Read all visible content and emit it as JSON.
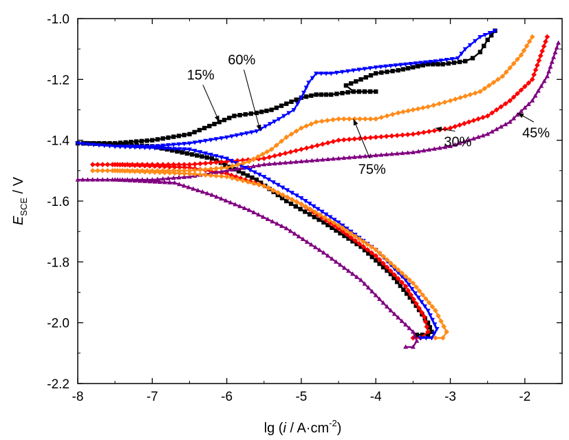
{
  "chart_data": {
    "type": "line",
    "xlim": [
      -8,
      -1.5
    ],
    "ylim": [
      -2.2,
      -1.0
    ],
    "x_ticks": [
      "-8",
      "-7",
      "-6",
      "-5",
      "-4",
      "-3",
      "-2"
    ],
    "y_ticks": [
      "-1.0",
      "-1.2",
      "-1.4",
      "-1.6",
      "-1.8",
      "-2.0",
      "-2.2"
    ],
    "xlabel": {
      "main": "lg (",
      "var": "i",
      "unit": " / A·cm",
      "sup": "-2",
      "close": ")"
    },
    "ylabel": {
      "var": "E",
      "sub": "SCE",
      "unit": " / V"
    },
    "grid": false,
    "legend": "none",
    "series": [
      {
        "name": "15%",
        "color": "#000000",
        "anodic": [
          [
            -8,
            -1.41
          ],
          [
            -7.5,
            -1.41
          ],
          [
            -7,
            -1.4
          ],
          [
            -6.5,
            -1.38
          ],
          [
            -6.3,
            -1.36
          ],
          [
            -6.1,
            -1.34
          ],
          [
            -5.9,
            -1.32
          ],
          [
            -5.6,
            -1.31
          ],
          [
            -5.4,
            -1.3
          ],
          [
            -5.2,
            -1.28
          ],
          [
            -5.0,
            -1.26
          ],
          [
            -4.8,
            -1.25
          ],
          [
            -4.6,
            -1.25
          ],
          [
            -4.3,
            -1.24
          ],
          [
            -4.0,
            -1.24
          ],
          [
            -4.3,
            -1.24
          ],
          [
            -4.4,
            -1.22
          ],
          [
            -4.2,
            -1.2
          ],
          [
            -4.0,
            -1.18
          ],
          [
            -3.7,
            -1.17
          ],
          [
            -3.5,
            -1.16
          ],
          [
            -3.3,
            -1.15
          ],
          [
            -3.1,
            -1.15
          ],
          [
            -2.8,
            -1.14
          ],
          [
            -2.7,
            -1.13
          ],
          [
            -2.6,
            -1.11
          ],
          [
            -2.5,
            -1.07
          ],
          [
            -2.4,
            -1.04
          ]
        ],
        "cathodic": [
          [
            -7.9,
            -1.41
          ],
          [
            -7.0,
            -1.42
          ],
          [
            -6.2,
            -1.46
          ],
          [
            -5.6,
            -1.53
          ],
          [
            -5.2,
            -1.6
          ],
          [
            -4.7,
            -1.67
          ],
          [
            -4.2,
            -1.75
          ],
          [
            -3.8,
            -1.84
          ],
          [
            -3.5,
            -1.93
          ],
          [
            -3.3,
            -2.0
          ],
          [
            -3.25,
            -2.03
          ],
          [
            -3.3,
            -2.04
          ],
          [
            -3.45,
            -2.04
          ]
        ]
      },
      {
        "name": "30%",
        "color": "#ff0000",
        "anodic": [
          [
            -7.8,
            -1.48
          ],
          [
            -7.0,
            -1.48
          ],
          [
            -6.5,
            -1.48
          ],
          [
            -6.0,
            -1.47
          ],
          [
            -5.5,
            -1.46
          ],
          [
            -5.0,
            -1.43
          ],
          [
            -4.5,
            -1.4
          ],
          [
            -4.0,
            -1.39
          ],
          [
            -3.5,
            -1.38
          ],
          [
            -3.0,
            -1.36
          ],
          [
            -2.5,
            -1.32
          ],
          [
            -2.2,
            -1.27
          ],
          [
            -1.9,
            -1.2
          ],
          [
            -1.7,
            -1.06
          ]
        ],
        "cathodic": [
          [
            -7.5,
            -1.48
          ],
          [
            -6.5,
            -1.49
          ],
          [
            -6.0,
            -1.51
          ],
          [
            -5.5,
            -1.55
          ],
          [
            -5.0,
            -1.61
          ],
          [
            -4.5,
            -1.69
          ],
          [
            -4.0,
            -1.78
          ],
          [
            -3.6,
            -1.88
          ],
          [
            -3.35,
            -1.98
          ],
          [
            -3.3,
            -2.03
          ],
          [
            -3.4,
            -2.05
          ],
          [
            -3.5,
            -2.05
          ]
        ]
      },
      {
        "name": "45%",
        "color": "#800080",
        "anodic": [
          [
            -8,
            -1.53
          ],
          [
            -7.0,
            -1.53
          ],
          [
            -6.5,
            -1.52
          ],
          [
            -6.0,
            -1.5
          ],
          [
            -5.5,
            -1.48
          ],
          [
            -5.0,
            -1.47
          ],
          [
            -4.5,
            -1.46
          ],
          [
            -4.0,
            -1.45
          ],
          [
            -3.5,
            -1.44
          ],
          [
            -3.0,
            -1.42
          ],
          [
            -2.5,
            -1.38
          ],
          [
            -2.2,
            -1.34
          ],
          [
            -1.9,
            -1.27
          ],
          [
            -1.7,
            -1.19
          ],
          [
            -1.55,
            -1.08
          ]
        ],
        "cathodic": [
          [
            -7.5,
            -1.53
          ],
          [
            -6.7,
            -1.54
          ],
          [
            -6.2,
            -1.58
          ],
          [
            -5.7,
            -1.63
          ],
          [
            -5.2,
            -1.69
          ],
          [
            -4.7,
            -1.77
          ],
          [
            -4.2,
            -1.86
          ],
          [
            -3.8,
            -1.96
          ],
          [
            -3.5,
            -2.03
          ],
          [
            -3.45,
            -2.06
          ],
          [
            -3.5,
            -2.08
          ],
          [
            -3.6,
            -2.08
          ]
        ]
      },
      {
        "name": "60%",
        "color": "#0000ff",
        "anodic": [
          [
            -8,
            -1.41
          ],
          [
            -7.5,
            -1.42
          ],
          [
            -7.0,
            -1.42
          ],
          [
            -6.5,
            -1.41
          ],
          [
            -6.0,
            -1.39
          ],
          [
            -5.6,
            -1.37
          ],
          [
            -5.3,
            -1.33
          ],
          [
            -5.1,
            -1.3
          ],
          [
            -5.0,
            -1.26
          ],
          [
            -4.9,
            -1.21
          ],
          [
            -4.8,
            -1.18
          ],
          [
            -4.6,
            -1.18
          ],
          [
            -4.3,
            -1.17
          ],
          [
            -4.0,
            -1.16
          ],
          [
            -3.6,
            -1.15
          ],
          [
            -3.2,
            -1.14
          ],
          [
            -2.9,
            -1.13
          ],
          [
            -2.8,
            -1.1
          ],
          [
            -2.6,
            -1.06
          ],
          [
            -2.4,
            -1.04
          ]
        ],
        "cathodic": [
          [
            -7.5,
            -1.42
          ],
          [
            -6.5,
            -1.43
          ],
          [
            -6.0,
            -1.46
          ],
          [
            -5.5,
            -1.52
          ],
          [
            -5.0,
            -1.59
          ],
          [
            -4.5,
            -1.67
          ],
          [
            -4.0,
            -1.76
          ],
          [
            -3.6,
            -1.86
          ],
          [
            -3.3,
            -1.96
          ],
          [
            -3.18,
            -2.02
          ],
          [
            -3.25,
            -2.05
          ],
          [
            -3.4,
            -2.05
          ]
        ]
      },
      {
        "name": "75%",
        "color": "#ff8c1a",
        "anodic": [
          [
            -7.8,
            -1.5
          ],
          [
            -7.0,
            -1.5
          ],
          [
            -6.5,
            -1.5
          ],
          [
            -6.0,
            -1.49
          ],
          [
            -5.7,
            -1.47
          ],
          [
            -5.4,
            -1.43
          ],
          [
            -5.2,
            -1.39
          ],
          [
            -5.0,
            -1.36
          ],
          [
            -4.8,
            -1.34
          ],
          [
            -4.5,
            -1.33
          ],
          [
            -4.0,
            -1.33
          ],
          [
            -3.7,
            -1.31
          ],
          [
            -3.3,
            -1.29
          ],
          [
            -3.0,
            -1.27
          ],
          [
            -2.6,
            -1.24
          ],
          [
            -2.3,
            -1.19
          ],
          [
            -2.05,
            -1.12
          ],
          [
            -1.9,
            -1.06
          ]
        ],
        "cathodic": [
          [
            -7.5,
            -1.5
          ],
          [
            -6.5,
            -1.51
          ],
          [
            -6.0,
            -1.52
          ],
          [
            -5.5,
            -1.55
          ],
          [
            -5.0,
            -1.61
          ],
          [
            -4.5,
            -1.68
          ],
          [
            -4.0,
            -1.76
          ],
          [
            -3.5,
            -1.87
          ],
          [
            -3.2,
            -1.96
          ],
          [
            -3.05,
            -2.03
          ],
          [
            -3.1,
            -2.05
          ],
          [
            -3.2,
            -2.05
          ]
        ]
      }
    ],
    "annotations": [
      {
        "text": "15%",
        "tx": -6.35,
        "ty": -1.2,
        "ax": -6.1,
        "ay": -1.34,
        "target": "15%"
      },
      {
        "text": "60%",
        "tx": -5.8,
        "ty": -1.15,
        "ax": -5.55,
        "ay": -1.37,
        "target": "60%"
      },
      {
        "text": "75%",
        "tx": -4.05,
        "ty": -1.51,
        "ax": -4.3,
        "ay": -1.33,
        "target": "75%"
      },
      {
        "text": "30%",
        "tx": -2.9,
        "ty": -1.42,
        "ax": -3.2,
        "ay": -1.36,
        "target": "30%"
      },
      {
        "text": "45%",
        "tx": -1.85,
        "ty": -1.39,
        "ax": -2.1,
        "ay": -1.31,
        "target": "45%"
      }
    ]
  }
}
